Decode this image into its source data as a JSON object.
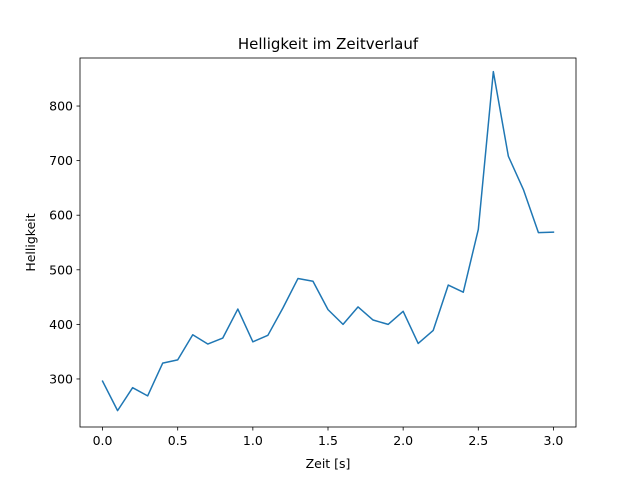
{
  "chart_data": {
    "type": "line",
    "title": "Helligkeit im Zeitverlauf",
    "xlabel": "Zeit [s]",
    "ylabel": "Helligkeit",
    "xlim": [
      -0.15,
      3.15
    ],
    "ylim": [
      212,
      888
    ],
    "xticks": [
      0.0,
      0.5,
      1.0,
      1.5,
      2.0,
      2.5,
      3.0
    ],
    "xtick_labels": [
      "0.0",
      "0.5",
      "1.0",
      "1.5",
      "2.0",
      "2.5",
      "3.0"
    ],
    "yticks": [
      300,
      400,
      500,
      600,
      700,
      800
    ],
    "ytick_labels": [
      "300",
      "400",
      "500",
      "600",
      "700",
      "800"
    ],
    "grid": false,
    "legend": "none",
    "line_color": "#1f77b4",
    "series": [
      {
        "x": [
          0.0,
          0.1,
          0.2,
          0.3,
          0.4,
          0.5,
          0.6,
          0.7,
          0.8,
          0.9,
          1.0,
          1.1,
          1.2,
          1.3,
          1.4,
          1.5,
          1.6,
          1.7,
          1.8,
          1.9,
          2.0,
          2.1,
          2.2,
          2.3,
          2.4,
          2.5,
          2.6,
          2.7,
          2.8,
          2.9,
          3.0
        ],
        "values": [
          296,
          242,
          284,
          269,
          329,
          335,
          381,
          364,
          375,
          428,
          368,
          380,
          430,
          484,
          479,
          427,
          400,
          432,
          408,
          400,
          424,
          365,
          389,
          472,
          459,
          574,
          863,
          708,
          647,
          568,
          569
        ]
      }
    ]
  }
}
